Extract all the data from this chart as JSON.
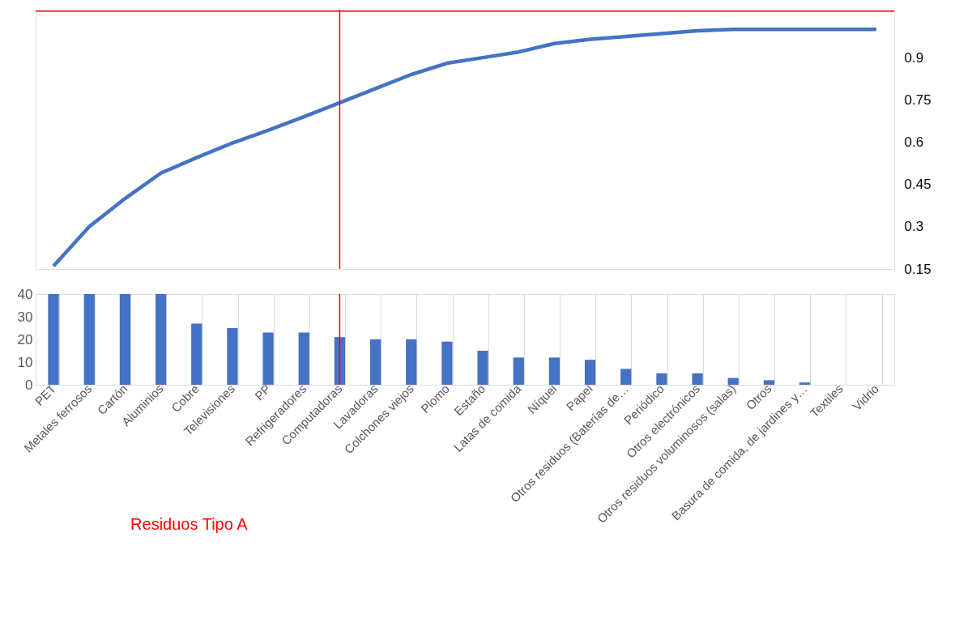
{
  "chart_data": [
    {
      "type": "line",
      "categories": [
        "PET",
        "Metales ferrosos",
        "Cartón",
        "Aluminios",
        "Cobre",
        "Televisiones",
        "PP",
        "Refrigeradores",
        "Computadoras",
        "Lavadoras",
        "Colchones viejos",
        "Plomo",
        "Estaño",
        "Latas de comida",
        "Níquel",
        "Papel",
        "Otros residuos (Baterías de…",
        "Periódico",
        "Otros electrónicos",
        "Otros residuos voluminosos (salas)",
        "Otros",
        "Basura de comida, de jardines y…",
        "Textiles",
        "Vidrio"
      ],
      "series": [
        {
          "color": "#4472c4",
          "values": [
            0.16,
            0.3,
            0.4,
            0.49,
            0.545,
            0.597,
            0.642,
            0.69,
            0.74,
            0.79,
            0.84,
            0.88,
            0.9,
            0.92,
            0.95,
            0.965,
            0.975,
            0.985,
            0.995,
            1.0,
            1.0,
            1.0,
            1.0,
            1.0
          ]
        }
      ],
      "ylim": [
        0.15,
        1.07
      ],
      "yticks": [
        0.15,
        0.3,
        0.45,
        0.6,
        0.75,
        0.9
      ],
      "ref_lines": [
        {
          "axis": "x",
          "value": "Computadoras",
          "color": "#ff0000"
        },
        {
          "axis": "y",
          "value": 1.065,
          "color": "#ff0000"
        }
      ],
      "tick_labels": "y",
      "line_style": "solid",
      "marker": "none"
    },
    {
      "type": "bar",
      "categories": [
        "PET",
        "Metales ferrosos",
        "Cartón",
        "Aluminios",
        "Cobre",
        "Televisiones",
        "PP",
        "Refrigeradores",
        "Computadoras",
        "Lavadoras",
        "Colchones viejos",
        "Plomo",
        "Estaño",
        "Latas de comida",
        "Níquel",
        "Papel",
        "Otros residuos (Baterías de…",
        "Periódico",
        "Otros electrónicos",
        "Otros residuos voluminosos (salas)",
        "Otros",
        "Basura de comida, de jardines y…",
        "Textiles",
        "Vidrio"
      ],
      "series": [
        {
          "color": "#4472c4",
          "values": [
            40,
            40,
            40,
            40,
            27,
            25,
            23,
            23,
            21,
            20,
            20,
            19,
            15,
            12,
            12,
            11,
            7,
            5,
            5,
            3,
            2,
            1,
            0,
            0
          ]
        }
      ],
      "ylim": [
        0,
        40
      ],
      "yticks": [
        0,
        10,
        20,
        30,
        40
      ],
      "ref_lines": [
        {
          "axis": "x",
          "value": "Computadoras",
          "color": "#ff0000"
        }
      ],
      "annotations": [
        "Residuos Tipo A"
      ],
      "grid": "x"
    }
  ]
}
